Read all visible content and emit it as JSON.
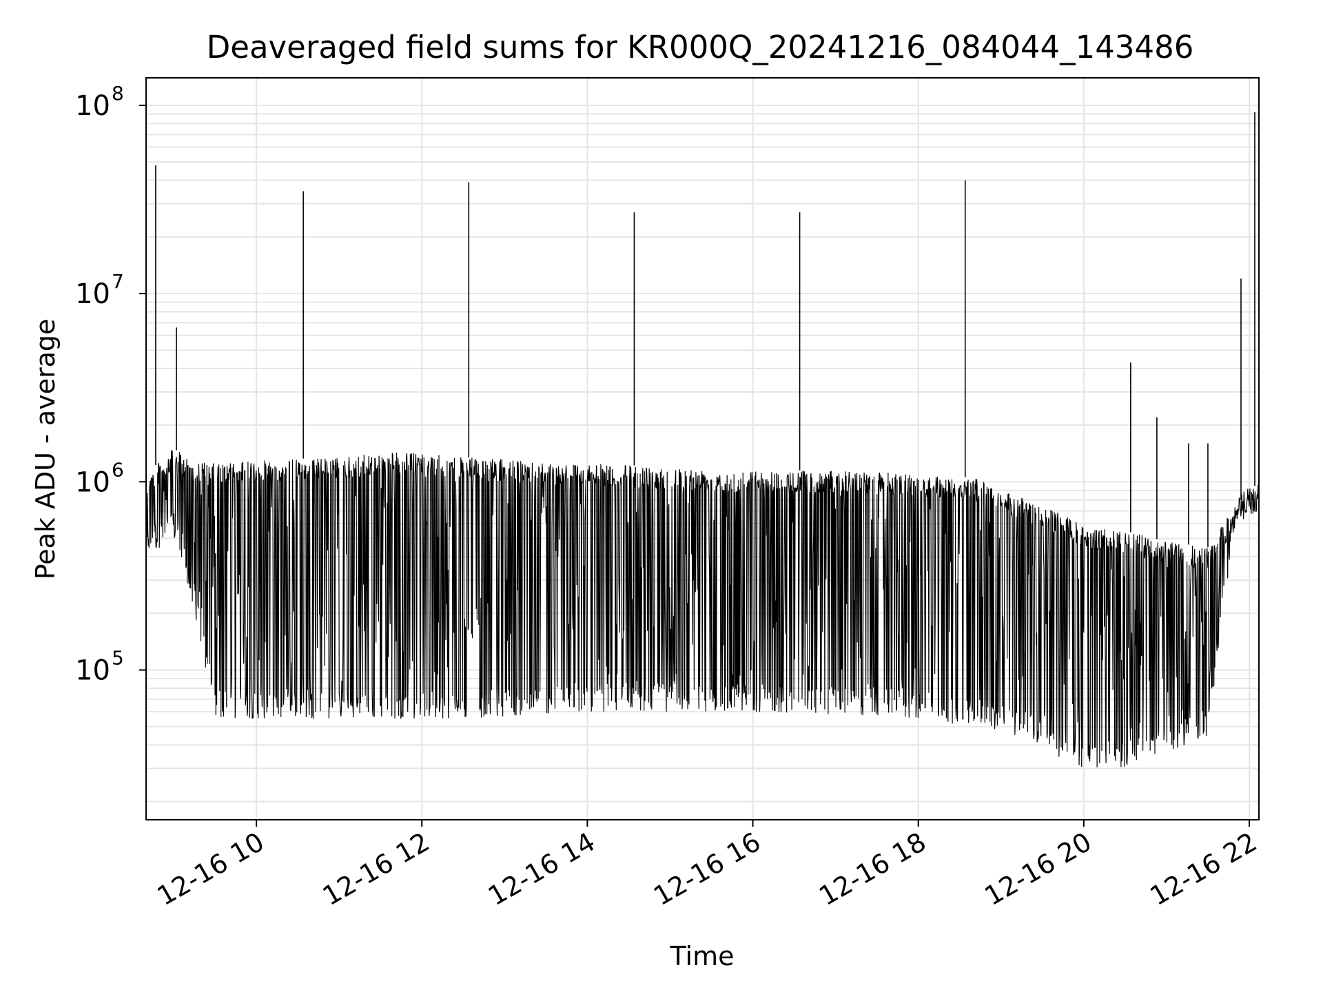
{
  "chart_data": {
    "type": "line",
    "title": "Deaveraged field sums for KR000Q_20241216_084044_143486",
    "xlabel": "Time",
    "ylabel": "Peak ADU - average",
    "yscale": "log",
    "grid": true,
    "line_color": "#000000",
    "grid_color": "#e5e5e5",
    "xlim": [
      "12-16 08:40",
      "12-16 22:07"
    ],
    "ylim": [
      16000,
      140000000
    ],
    "x_ticks": [
      {
        "label": "12-16 10",
        "value": "12-16 10:00"
      },
      {
        "label": "12-16 12",
        "value": "12-16 12:00"
      },
      {
        "label": "12-16 14",
        "value": "12-16 14:00"
      },
      {
        "label": "12-16 16",
        "value": "12-16 16:00"
      },
      {
        "label": "12-16 18",
        "value": "12-16 18:00"
      },
      {
        "label": "12-16 20",
        "value": "12-16 20:00"
      },
      {
        "label": "12-16 22",
        "value": "12-16 22:00"
      }
    ],
    "y_ticks": [
      {
        "base": "10",
        "exp": "5",
        "value": 100000
      },
      {
        "base": "10",
        "exp": "6",
        "value": 1000000
      },
      {
        "base": "10",
        "exp": "7",
        "value": 10000000
      },
      {
        "base": "10",
        "exp": "8",
        "value": 100000000
      }
    ],
    "envelope": {
      "description_x": "time",
      "x": [
        "12-16 08:40",
        "12-16 09:00",
        "12-16 09:15",
        "12-16 09:30",
        "12-16 10:00",
        "12-16 11:00",
        "12-16 11:40",
        "12-16 12:30",
        "12-16 14:00",
        "12-16 15:00",
        "12-16 16:00",
        "12-16 17:00",
        "12-16 18:00",
        "12-16 18:40",
        "12-16 19:10",
        "12-16 19:40",
        "12-16 20:00",
        "12-16 20:30",
        "12-16 21:00",
        "12-16 21:30",
        "12-16 21:50",
        "12-16 22:07"
      ],
      "upper": [
        1100000,
        1500000,
        1300000,
        1250000,
        1300000,
        1350000,
        1450000,
        1350000,
        1250000,
        1200000,
        1150000,
        1150000,
        1100000,
        1050000,
        850000,
        700000,
        580000,
        550000,
        480000,
        450000,
        750000,
        1000000
      ],
      "lower": [
        400000,
        500000,
        200000,
        55000,
        55000,
        55000,
        55000,
        55000,
        60000,
        60000,
        60000,
        58000,
        55000,
        50000,
        45000,
        35000,
        30000,
        30000,
        35000,
        45000,
        600000,
        700000
      ]
    },
    "spikes": [
      {
        "x": "12-16 08:47",
        "y": 48000000
      },
      {
        "x": "12-16 09:02",
        "y": 6600000
      },
      {
        "x": "12-16 10:34",
        "y": 35000000
      },
      {
        "x": "12-16 12:34",
        "y": 39000000
      },
      {
        "x": "12-16 14:34",
        "y": 27000000
      },
      {
        "x": "12-16 16:34",
        "y": 27000000
      },
      {
        "x": "12-16 18:34",
        "y": 40000000
      },
      {
        "x": "12-16 20:34",
        "y": 4300000
      },
      {
        "x": "12-16 20:53",
        "y": 2200000
      },
      {
        "x": "12-16 21:16",
        "y": 1600000
      },
      {
        "x": "12-16 21:30",
        "y": 1600000
      },
      {
        "x": "12-16 21:54",
        "y": 12000000
      },
      {
        "x": "12-16 22:04",
        "y": 92000000
      }
    ]
  }
}
